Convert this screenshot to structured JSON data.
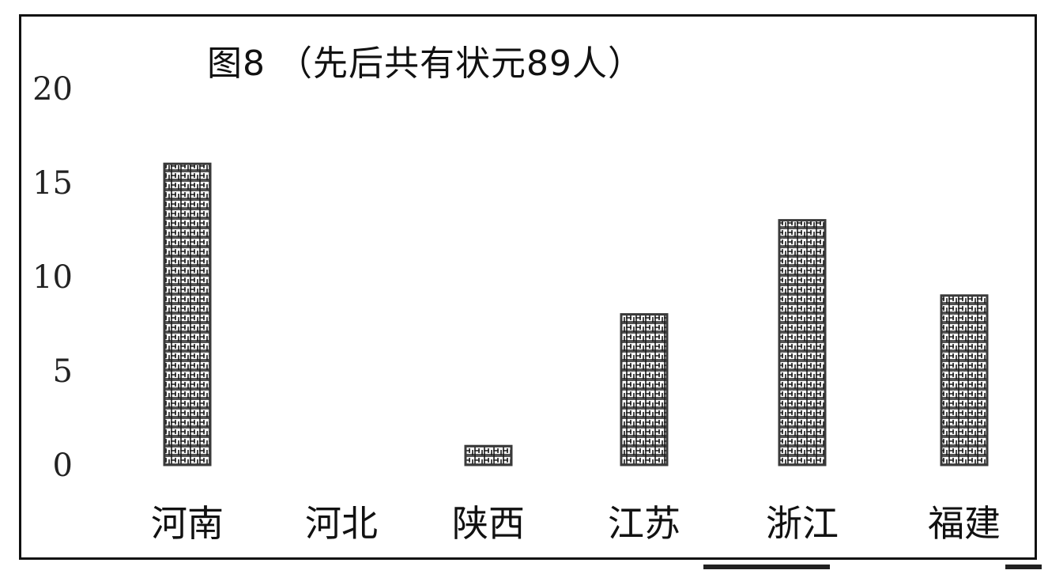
{
  "chart_data": {
    "type": "bar",
    "title": "图8 （先后共有状元89人）",
    "categories": [
      "河南",
      "河北",
      "陕西",
      "江苏",
      "浙江",
      "福建"
    ],
    "values": [
      16,
      0,
      1,
      8,
      13,
      9
    ],
    "ylim": [
      0,
      20
    ],
    "yticks": [
      "20",
      "15",
      "10",
      "5",
      "0"
    ],
    "grid": false,
    "legend": "none",
    "bar_color": "#3a3a3a"
  }
}
